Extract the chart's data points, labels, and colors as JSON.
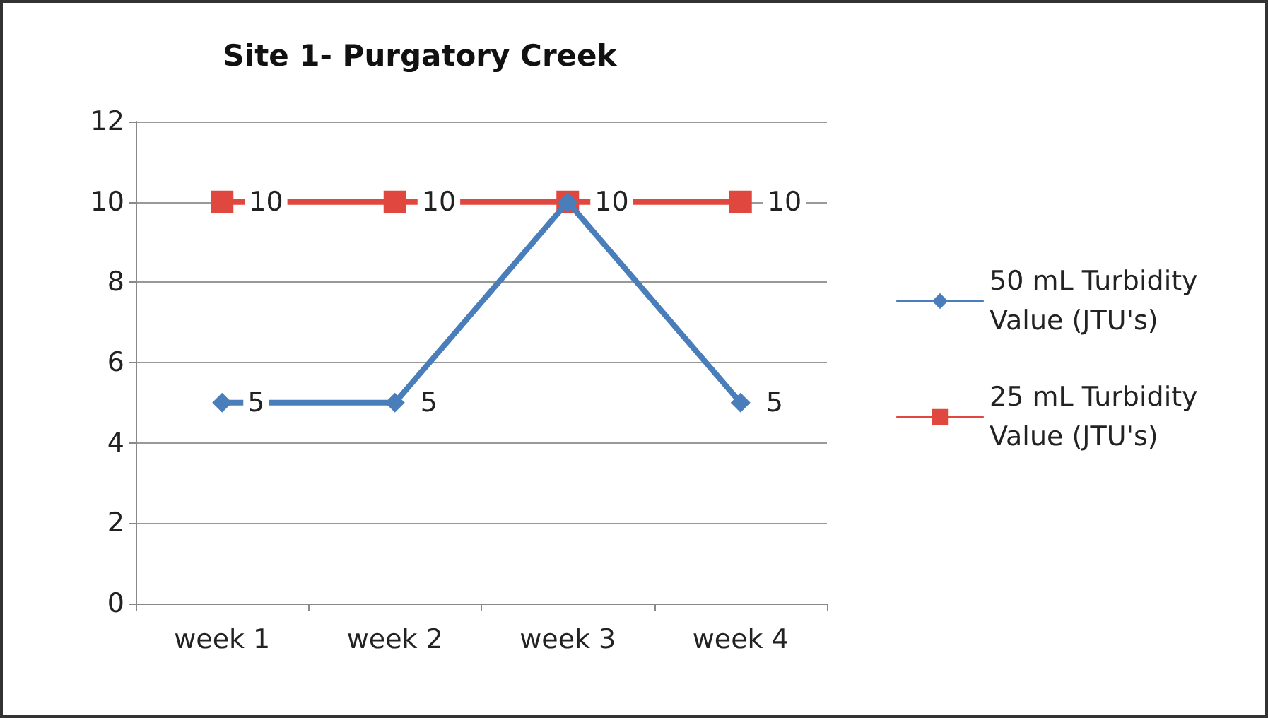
{
  "chart_data": {
    "type": "line",
    "title": "Site 1- Purgatory Creek",
    "categories": [
      "week 1",
      "week 2",
      "week 3",
      "week 4"
    ],
    "series": [
      {
        "name": "50 mL Turbidity Value (JTU's)",
        "color": "#4a7ebb",
        "marker": "diamond",
        "values": [
          5,
          5,
          10,
          5
        ],
        "value_labels": [
          "5",
          "5",
          null,
          "5"
        ]
      },
      {
        "name": "25 mL Turbidity Value (JTU's)",
        "color": "#e0473e",
        "marker": "square",
        "values": [
          10,
          10,
          10,
          10
        ]
      }
    ],
    "ylim": [
      0,
      12
    ],
    "yticks": [
      0,
      2,
      4,
      6,
      8,
      10,
      12
    ],
    "grid": "y",
    "legend": "right",
    "data_labels": true
  }
}
